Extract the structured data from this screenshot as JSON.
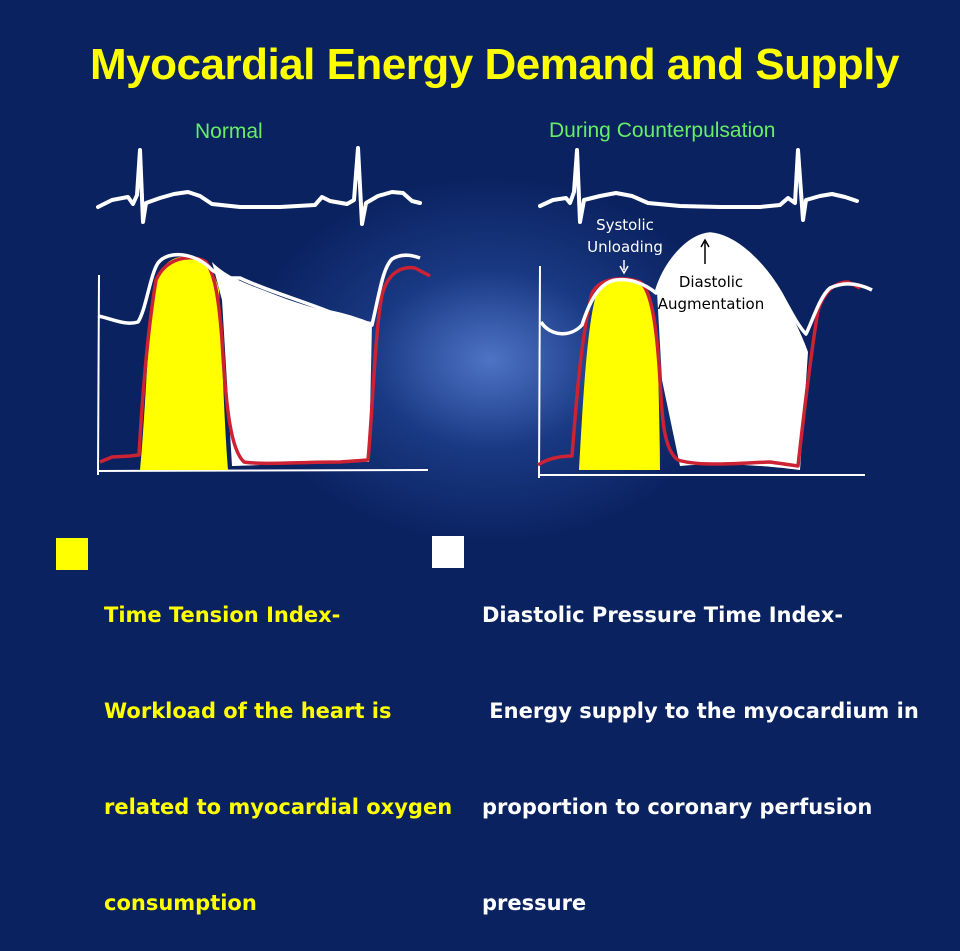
{
  "title": "Myocardial Energy Demand and Supply",
  "panels": {
    "left_label": "Normal",
    "right_label": "During Counterpulsation"
  },
  "annotations": {
    "systolic_line1": "Systolic",
    "systolic_line2": "Unloading",
    "diastolic_line1": "Diastolic",
    "diastolic_line2": "Augmentation"
  },
  "legend": {
    "yellow": {
      "color": "#ffff00",
      "lines": [
        "Time Tension Index-",
        "Workload of the heart is",
        "related to myocardial oxygen",
        "consumption"
      ]
    },
    "white": {
      "color": "#ffffff",
      "lines": [
        "Diastolic Pressure Time Index-",
        " Energy supply to the myocardium in",
        "proportion to coronary perfusion",
        "pressure"
      ]
    }
  }
}
